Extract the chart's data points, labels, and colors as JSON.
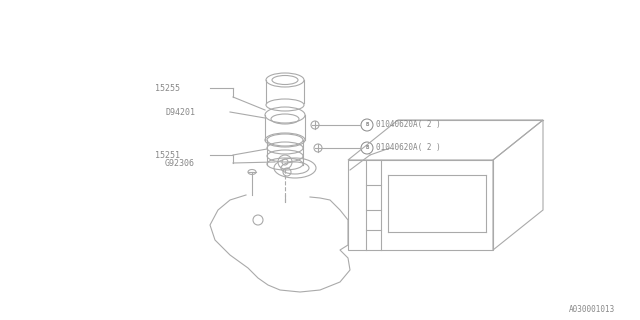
{
  "bg_color": "#ffffff",
  "line_color": "#aaaaaa",
  "text_color": "#888888",
  "footer": "A030001013",
  "label_15255": "15255",
  "label_D94201": "D94201",
  "label_15251": "15251",
  "label_G92306": "G92306",
  "bolt_label": "01040620A( 2 )",
  "bolt_label2": "01040620A( 2 )"
}
